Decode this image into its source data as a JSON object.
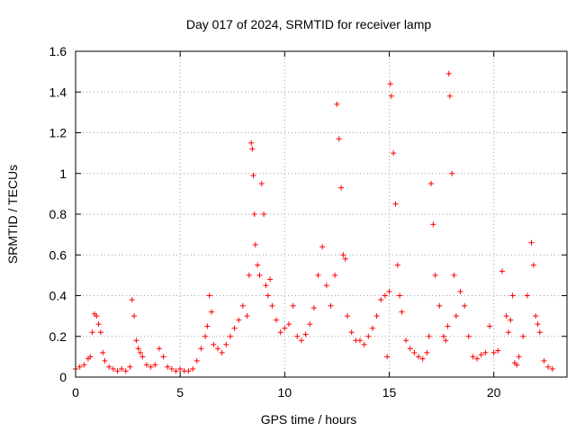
{
  "chart_data": {
    "type": "scatter",
    "title": "Day 017 of 2024, SRMTID for receiver lamp",
    "xlabel": "GPS time / hours",
    "ylabel": "SRMTID / TECUs",
    "xlim": [
      0,
      23.5
    ],
    "ylim": [
      0,
      1.6
    ],
    "xticks": [
      0,
      5,
      10,
      15,
      20
    ],
    "xtick_labels": [
      "0",
      "5",
      "10",
      "15",
      "20"
    ],
    "yticks": [
      0,
      0.2,
      0.4,
      0.6,
      0.8,
      1,
      1.2,
      1.4,
      1.6
    ],
    "ytick_labels": [
      "0",
      "0.2",
      "0.4",
      "0.6",
      "0.8",
      "1",
      "1.2",
      "1.4",
      "1.6"
    ],
    "grid": true,
    "marker": "+",
    "color": "#ff0000",
    "series": [
      {
        "name": "SRMTID",
        "x": [
          0.0,
          0.2,
          0.4,
          0.6,
          0.7,
          0.8,
          0.9,
          1.0,
          1.1,
          1.2,
          1.3,
          1.4,
          1.6,
          1.8,
          2.0,
          2.2,
          2.4,
          2.6,
          2.7,
          2.8,
          2.9,
          3.0,
          3.1,
          3.2,
          3.4,
          3.6,
          3.8,
          4.0,
          4.2,
          4.4,
          4.6,
          4.8,
          5.0,
          5.2,
          5.4,
          5.6,
          5.8,
          6.0,
          6.2,
          6.3,
          6.4,
          6.5,
          6.6,
          6.8,
          7.0,
          7.2,
          7.4,
          7.6,
          7.8,
          8.0,
          8.2,
          8.3,
          8.4,
          8.45,
          8.5,
          8.55,
          8.6,
          8.7,
          8.8,
          8.9,
          9.0,
          9.1,
          9.2,
          9.3,
          9.4,
          9.6,
          9.8,
          10.0,
          10.2,
          10.4,
          10.6,
          10.8,
          11.0,
          11.2,
          11.4,
          11.6,
          11.8,
          12.0,
          12.2,
          12.4,
          12.5,
          12.6,
          12.7,
          12.8,
          12.9,
          13.0,
          13.2,
          13.4,
          13.6,
          13.8,
          14.0,
          14.2,
          14.4,
          14.6,
          14.8,
          14.9,
          15.0,
          15.05,
          15.1,
          15.2,
          15.3,
          15.4,
          15.5,
          15.6,
          15.8,
          16.0,
          16.2,
          16.4,
          16.6,
          16.8,
          16.9,
          17.0,
          17.1,
          17.2,
          17.4,
          17.6,
          17.7,
          17.8,
          17.85,
          17.9,
          18.0,
          18.1,
          18.2,
          18.4,
          18.6,
          18.8,
          19.0,
          19.2,
          19.4,
          19.6,
          19.8,
          20.0,
          20.2,
          20.4,
          20.6,
          20.7,
          20.8,
          20.9,
          21.0,
          21.1,
          21.2,
          21.4,
          21.6,
          21.8,
          21.9,
          22.0,
          22.1,
          22.2,
          22.4,
          22.6,
          22.8
        ],
        "y": [
          0.04,
          0.05,
          0.06,
          0.09,
          0.1,
          0.22,
          0.31,
          0.3,
          0.26,
          0.22,
          0.12,
          0.08,
          0.05,
          0.04,
          0.03,
          0.04,
          0.03,
          0.05,
          0.38,
          0.3,
          0.18,
          0.14,
          0.12,
          0.1,
          0.06,
          0.05,
          0.06,
          0.14,
          0.1,
          0.05,
          0.04,
          0.03,
          0.04,
          0.03,
          0.03,
          0.04,
          0.08,
          0.14,
          0.2,
          0.25,
          0.4,
          0.32,
          0.16,
          0.14,
          0.12,
          0.16,
          0.2,
          0.24,
          0.28,
          0.35,
          0.3,
          0.5,
          1.15,
          1.12,
          0.99,
          0.8,
          0.65,
          0.55,
          0.5,
          0.95,
          0.8,
          0.45,
          0.4,
          0.48,
          0.35,
          0.28,
          0.22,
          0.24,
          0.26,
          0.35,
          0.2,
          0.18,
          0.21,
          0.26,
          0.34,
          0.5,
          0.64,
          0.45,
          0.35,
          0.5,
          1.34,
          1.17,
          0.93,
          0.6,
          0.58,
          0.3,
          0.22,
          0.18,
          0.18,
          0.16,
          0.2,
          0.24,
          0.3,
          0.38,
          0.4,
          0.1,
          0.42,
          1.44,
          1.38,
          1.1,
          0.85,
          0.55,
          0.4,
          0.32,
          0.18,
          0.14,
          0.12,
          0.1,
          0.09,
          0.12,
          0.2,
          0.95,
          0.75,
          0.5,
          0.35,
          0.2,
          0.18,
          0.25,
          1.49,
          1.38,
          1.0,
          0.5,
          0.3,
          0.42,
          0.35,
          0.2,
          0.1,
          0.09,
          0.11,
          0.12,
          0.25,
          0.12,
          0.13,
          0.52,
          0.3,
          0.22,
          0.28,
          0.4,
          0.07,
          0.06,
          0.1,
          0.2,
          0.4,
          0.66,
          0.55,
          0.3,
          0.26,
          0.22,
          0.08,
          0.05,
          0.04
        ]
      }
    ]
  }
}
